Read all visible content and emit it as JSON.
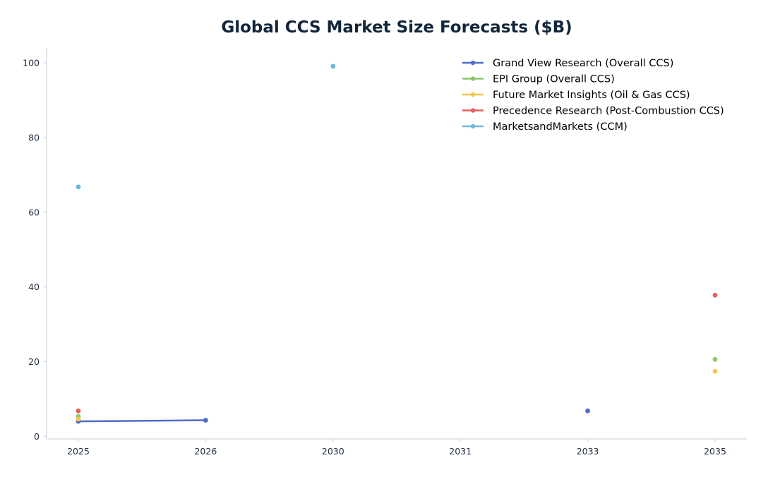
{
  "chart_data": {
    "type": "line",
    "title": "Global CCS Market Size Forecasts ($B)",
    "xlabel": "",
    "ylabel": "",
    "x_categories": [
      "2025",
      "2026",
      "2030",
      "2031",
      "2033",
      "2035"
    ],
    "yticks": [
      0,
      20,
      40,
      60,
      80,
      100
    ],
    "ylim": [
      -0.7,
      104
    ],
    "grid": false,
    "legend_position": "top-right",
    "series": [
      {
        "name": "Grand View Research (Overall CCS)",
        "color": "#4f6fc6",
        "points": [
          {
            "x": "2025",
            "y": 4.0
          },
          {
            "x": "2026",
            "y": 4.3
          },
          {
            "x": "2033",
            "y": 6.8
          }
        ]
      },
      {
        "name": "EPI Group (Overall CCS)",
        "color": "#8cc66a",
        "points": [
          {
            "x": "2025",
            "y": 5.3
          },
          {
            "x": "2035",
            "y": 20.6
          }
        ]
      },
      {
        "name": "Future Market Insights (Oil & Gas CCS)",
        "color": "#f5c451",
        "points": [
          {
            "x": "2025",
            "y": 4.6
          },
          {
            "x": "2035",
            "y": 17.4
          }
        ]
      },
      {
        "name": "Precedence Research (Post-Combustion CCS)",
        "color": "#e8605a",
        "points": [
          {
            "x": "2025",
            "y": 6.8
          },
          {
            "x": "2035",
            "y": 37.8
          }
        ]
      },
      {
        "name": "MarketsandMarkets (CCM)",
        "color": "#6bb8dc",
        "points": [
          {
            "x": "2025",
            "y": 66.8
          },
          {
            "x": "2030",
            "y": 99.1
          }
        ]
      }
    ]
  }
}
